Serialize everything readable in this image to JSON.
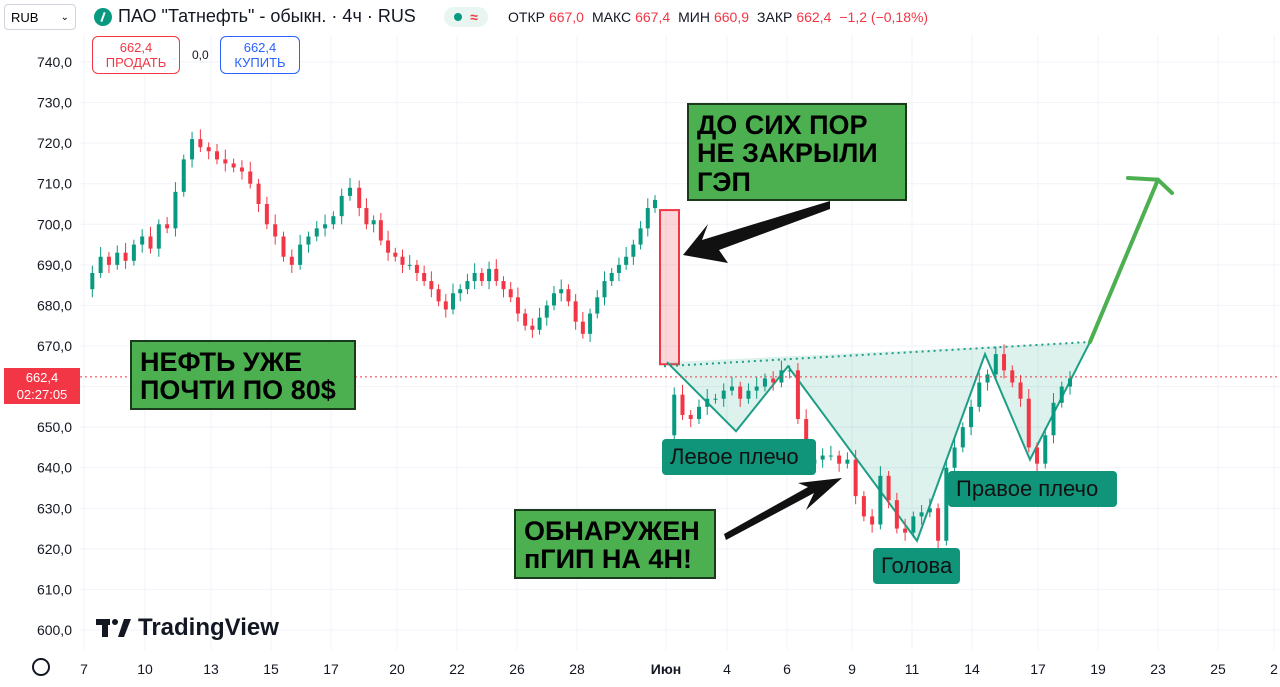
{
  "currency_select": {
    "value": "RUB",
    "chevron_icon": "chevron-down-icon"
  },
  "symbol": {
    "title": "ПАО \"Татнефть\" - обыкн. · 4ч · RUS",
    "logo_icon": "tatneft-logo-icon"
  },
  "status": {
    "market_icon": "market-open-dot-icon",
    "wave_icon": "approx-icon"
  },
  "ohlc": {
    "open_label": "ОТКР",
    "open": "667,0",
    "high_label": "МАКС",
    "high": "667,4",
    "low_label": "МИН",
    "low": "660,9",
    "close_label": "ЗАКР",
    "close": "662,4",
    "change": "−1,2 (−0,18%)"
  },
  "trade": {
    "sell_price": "662,4",
    "sell_label": "ПРОДАТЬ",
    "spread": "0,0",
    "buy_price": "662,4",
    "buy_label": "КУПИТЬ"
  },
  "price_tag": {
    "price": "662,4",
    "countdown": "02:27:05"
  },
  "annotations": {
    "gap_note": "ДО СИХ ПОР\nНЕ ЗАКРЫЛИ\nГЭП",
    "oil_note": "НЕФТЬ УЖЕ\nПОЧТИ ПО 80$",
    "pattern_note": "ОБНАРУЖЕН\nпГИП НА 4Н!",
    "left_shoulder": "Левое плечо",
    "head": "Голова",
    "right_shoulder": "Правое плечо"
  },
  "branding": {
    "logo_text": "TradingView",
    "logo_icon": "tradingview-logo-icon"
  },
  "colors": {
    "up": "#089981",
    "down": "#f23645",
    "note_green": "#4caf50",
    "label_teal": "#10947a",
    "pattern_line": "#1d9e85",
    "arrow_green": "#4caf50",
    "buy_blue": "#2962ff"
  },
  "chart_data": {
    "type": "candlestick",
    "ylim": [
      596,
      746
    ],
    "y_ticks": [
      "740,0",
      "730,0",
      "720,0",
      "710,0",
      "700,0",
      "690,0",
      "680,0",
      "670,0",
      "660,0",
      "650,0",
      "640,0",
      "630,0",
      "620,0",
      "610,0",
      "600,0"
    ],
    "x_ticks": [
      "7",
      "10",
      "13",
      "15",
      "17",
      "20",
      "22",
      "26",
      "28",
      "Июн",
      "4",
      "6",
      "9",
      "11",
      "14",
      "17",
      "19",
      "23",
      "25",
      "2"
    ],
    "current_price": 662.4,
    "gap_zone": {
      "from": 665.5,
      "to": 703.5
    },
    "inverse_head_shoulders": {
      "neckline": [
        [
          664,
          665
        ],
        [
          1090,
          671
        ]
      ],
      "points": [
        [
          667,
          666
        ],
        [
          736,
          649
        ],
        [
          788,
          665
        ],
        [
          917,
          622
        ],
        [
          985,
          668
        ],
        [
          1030,
          642
        ],
        [
          1090,
          671
        ]
      ]
    },
    "target_arrow": [
      [
        1090,
        671
      ],
      [
        1158,
        711
      ]
    ],
    "segments": [
      {
        "x0": 84,
        "x1": 350,
        "prices": [
          684,
          688,
          692,
          690,
          693,
          691,
          695,
          697,
          694,
          700,
          699,
          708,
          716,
          721,
          719,
          718,
          716,
          715,
          714,
          713,
          710,
          705,
          700,
          697,
          692,
          690,
          695,
          697,
          699,
          700,
          702,
          707,
          709
        ]
      },
      {
        "x0": 352,
        "x1": 655,
        "prices": [
          709,
          704,
          700,
          701,
          696,
          693,
          692,
          690,
          690,
          688,
          686,
          684,
          681,
          679,
          683,
          684,
          686,
          688,
          686,
          689,
          686,
          684,
          682,
          678,
          675,
          674,
          677,
          680,
          683,
          684,
          681,
          676,
          673,
          678,
          682,
          686,
          688,
          690,
          692,
          695,
          699,
          704,
          706
        ]
      },
      {
        "x0": 666,
        "x1": 1070,
        "prices": [
          648,
          658,
          653,
          652,
          655,
          657,
          657,
          659,
          660,
          657,
          659,
          660,
          662,
          661,
          664,
          664,
          652,
          641,
          642,
          643,
          643,
          641,
          642,
          633,
          628,
          626,
          638,
          632,
          625,
          624,
          628,
          629,
          630,
          622,
          640,
          645,
          650,
          655,
          661,
          663,
          668,
          664,
          661,
          657,
          645,
          641,
          648,
          656,
          660,
          662
        ]
      }
    ]
  }
}
